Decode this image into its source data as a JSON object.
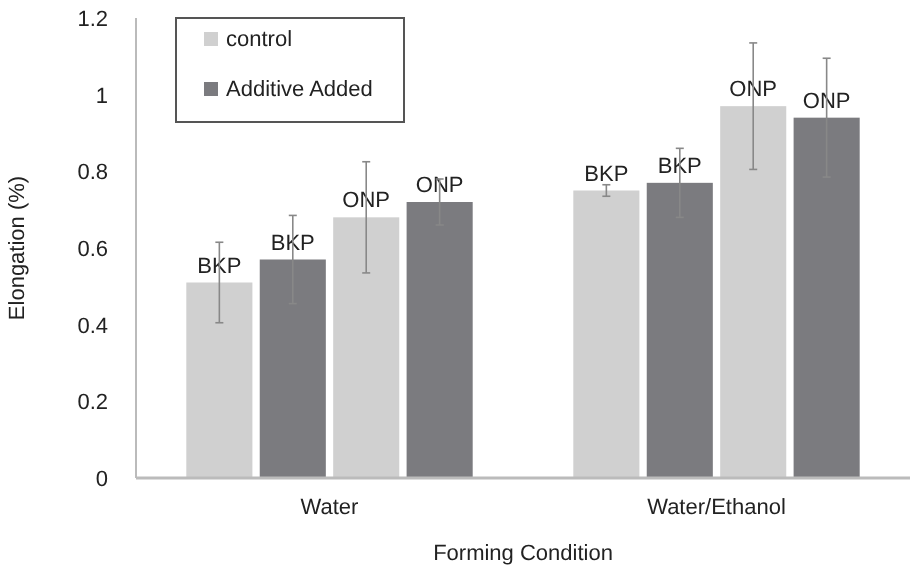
{
  "chart_data": {
    "type": "bar",
    "xlabel": "Forming Condition",
    "ylabel": "Elongation (%)",
    "categories": [
      "Water",
      "Water/Ethanol"
    ],
    "series": [
      {
        "name": "control",
        "color": "#d0d0d0",
        "values": [
          0.51,
          0.75
        ],
        "errors": [
          0.105,
          0.015
        ],
        "value_labels": [
          "BKP",
          "BKP"
        ]
      },
      {
        "name": "Additive Added",
        "color": "#7b7b7f",
        "values": [
          0.57,
          0.77
        ],
        "errors": [
          0.115,
          0.09
        ],
        "value_labels": [
          "BKP",
          "BKP"
        ]
      },
      {
        "color": "#d0d0d0",
        "values": [
          0.68,
          0.97
        ],
        "errors": [
          0.145,
          0.165
        ],
        "value_labels": [
          "ONP",
          "ONP"
        ]
      },
      {
        "color": "#7b7b7f",
        "values": [
          0.72,
          0.94
        ],
        "errors": [
          0.06,
          0.155
        ],
        "value_labels": [
          "ONP",
          "ONP"
        ]
      }
    ],
    "ylim": [
      0,
      1.2
    ],
    "yticks": [
      0,
      0.2,
      0.4,
      0.6,
      0.8,
      1,
      {
        "value": 1.2,
        "label": "1.2"
      }
    ],
    "legend": "top left",
    "grid": false
  }
}
